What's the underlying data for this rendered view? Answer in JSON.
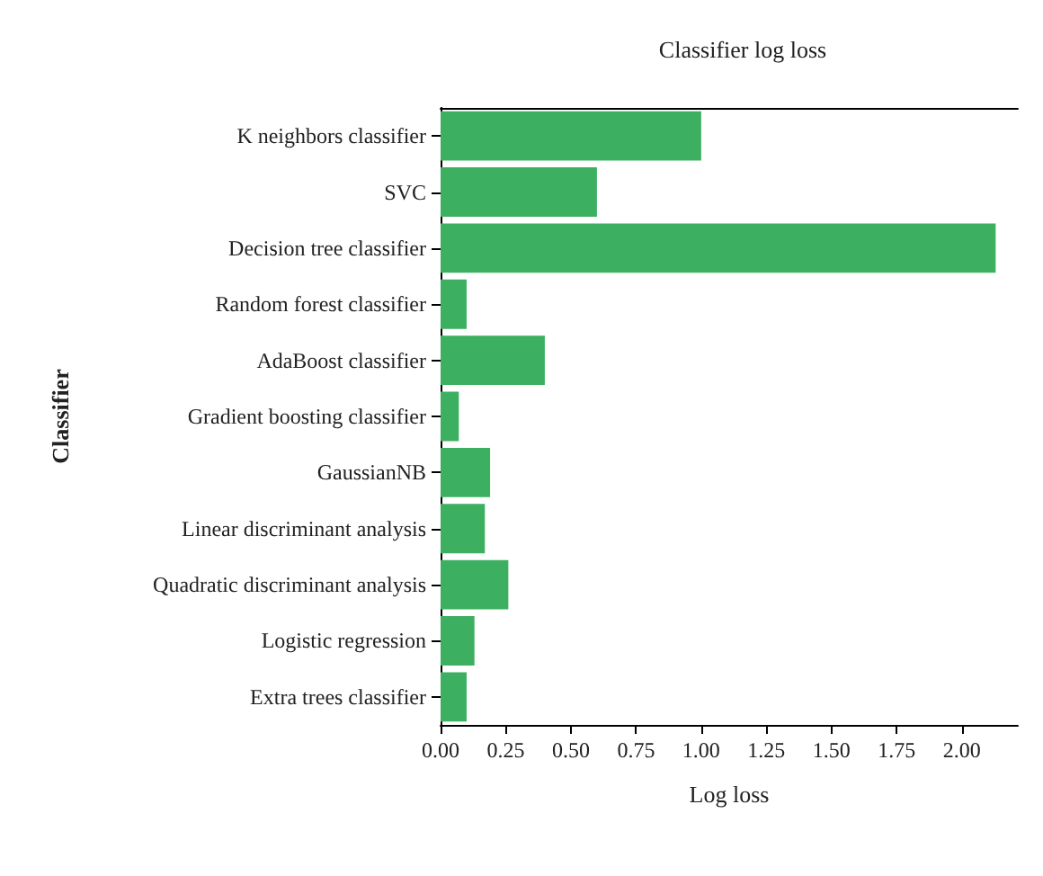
{
  "chart_data": {
    "type": "bar",
    "orientation": "horizontal",
    "title": "Classifier log loss",
    "xlabel": "Log loss",
    "ylabel": "Classifier",
    "categories": [
      "K neighbors classifier",
      "SVC",
      "Decision tree classifier",
      "Random forest classifier",
      "AdaBoost classifier",
      "Gradient boosting classifier",
      "GaussianNB",
      "Linear discriminant analysis",
      "Quadratic discriminant analysis",
      "Logistic regression",
      "Extra trees classifier"
    ],
    "values": [
      1.0,
      0.6,
      2.13,
      0.1,
      0.4,
      0.07,
      0.19,
      0.17,
      0.26,
      0.13,
      0.1
    ],
    "color": "#3cb060",
    "xlim": [
      0,
      2.215
    ],
    "xticks": [
      {
        "value": 0,
        "label": "0.00"
      },
      {
        "value": 0.25,
        "label": "0.25"
      },
      {
        "value": 0.5,
        "label": "0.50"
      },
      {
        "value": 0.75,
        "label": "0.75"
      },
      {
        "value": 1,
        "label": "1.00"
      },
      {
        "value": 1.25,
        "label": "1.25"
      },
      {
        "value": 1.5,
        "label": "1.50"
      },
      {
        "value": 1.75,
        "label": "1.75"
      },
      {
        "value": 2,
        "label": "2.00"
      }
    ],
    "grid": false
  }
}
